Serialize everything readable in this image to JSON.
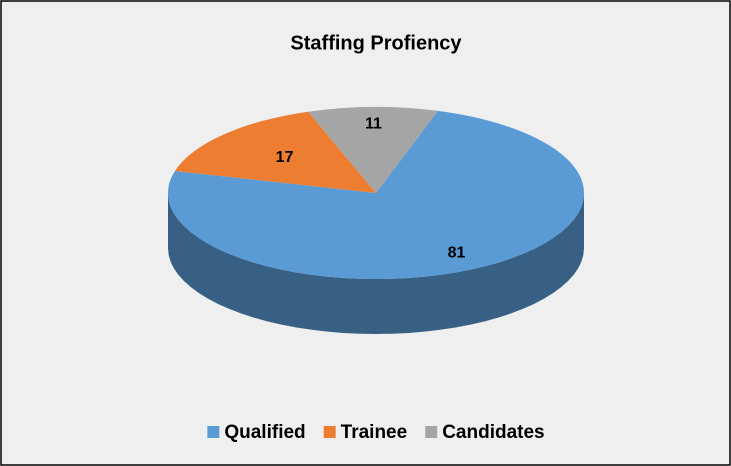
{
  "chart_data": {
    "type": "pie",
    "title": "Staffing Profiency",
    "categories": [
      "Qualified",
      "Trainee",
      "Candidates"
    ],
    "values": [
      81,
      17,
      11
    ],
    "colors": [
      "#5b9bd5",
      "#ed7d31",
      "#a5a5a5"
    ],
    "legend": "bottom"
  }
}
